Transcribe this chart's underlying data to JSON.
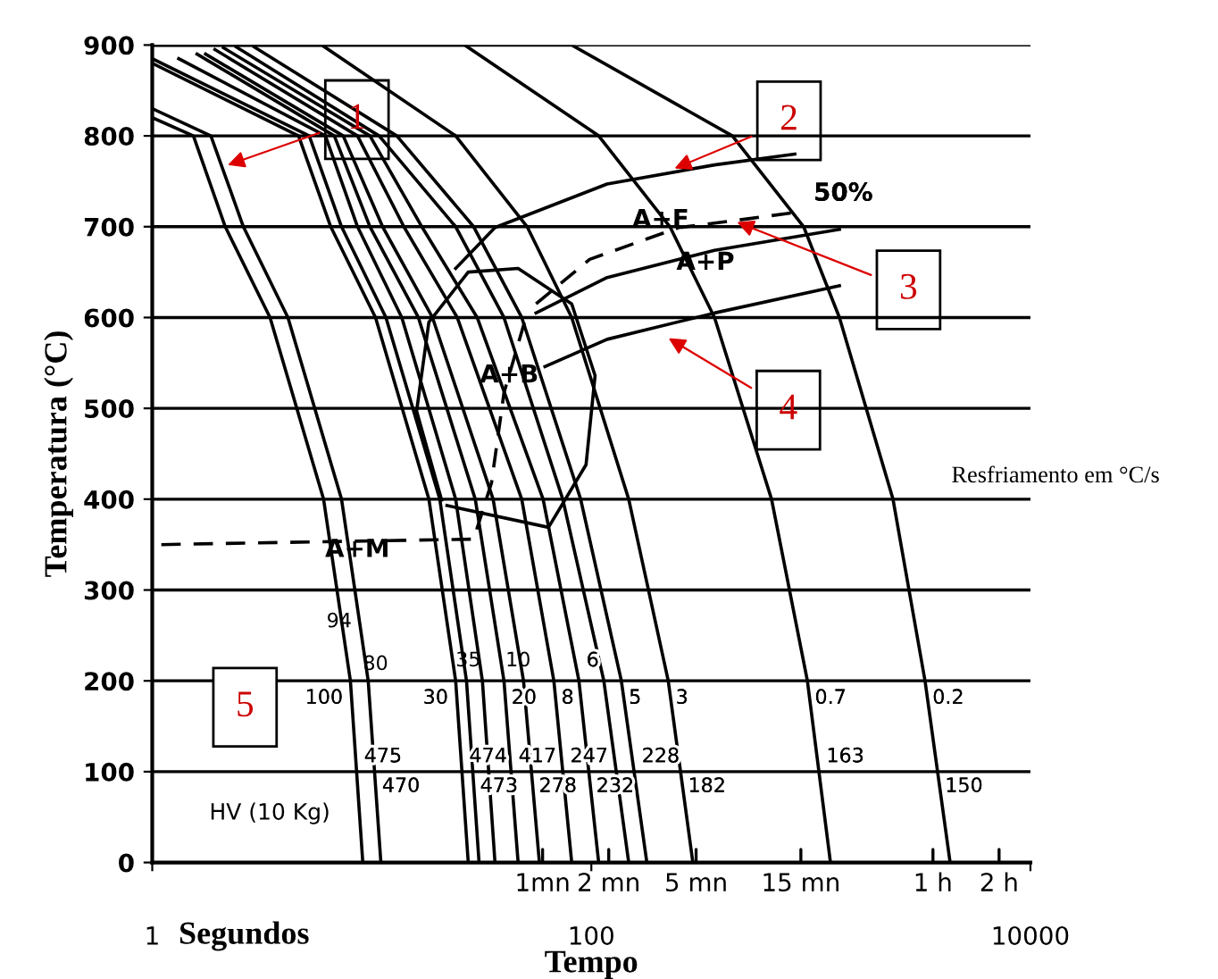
{
  "chart_data": {
    "type": "line",
    "xlabel": "Tempo",
    "ylabel": "Temperatura (°C)",
    "log": "x",
    "xlim": [
      1,
      10000
    ],
    "xticks": [
      1,
      100,
      10000
    ],
    "ylim": [
      0,
      900
    ],
    "yticks": [
      0,
      100,
      200,
      300,
      400,
      500,
      600,
      700,
      800,
      900
    ],
    "grid": "y",
    "marker": "none",
    "series": [
      {
        "color": "#000000",
        "x": [
          1,
          1.54,
          2.15,
          3.44,
          6.03,
          7.99,
          9.1
        ],
        "values": [
          820,
          800,
          700,
          600,
          400,
          200,
          0
        ]
      },
      {
        "color": "#000000",
        "x": [
          1,
          1.85,
          2.6,
          4.15,
          7.28,
          9.63,
          11
        ],
        "values": [
          830,
          800,
          700,
          600,
          400,
          200,
          0
        ]
      },
      {
        "color": "#000000",
        "x": [
          1,
          4.64,
          6.5,
          10.4,
          18.2,
          24.1,
          27.5
        ],
        "values": [
          880,
          800,
          700,
          600,
          400,
          200,
          0
        ]
      },
      {
        "color": "#000000",
        "x": [
          1,
          5.19,
          7.28,
          11.6,
          20.4,
          27,
          30.8
        ],
        "values": [
          885,
          800,
          700,
          600,
          400,
          200,
          0
        ]
      },
      {
        "color": "#000000",
        "x": [
          1.32,
          6.15,
          8.61,
          13.7,
          24.1,
          31.9,
          36.4
        ],
        "values": [
          885,
          800,
          700,
          600,
          400,
          200,
          0
        ]
      },
      {
        "color": "#000000",
        "x": [
          1.6,
          6.75,
          9.81,
          16.3,
          29.6,
          40,
          46.4
        ],
        "values": [
          890,
          800,
          700,
          600,
          400,
          200,
          0
        ]
      },
      {
        "color": "#000000",
        "x": [
          1.75,
          7.41,
          11.2,
          18.9,
          35.7,
          49.1,
          58
        ],
        "values": [
          890,
          800,
          700,
          600,
          400,
          200,
          0
        ]
      },
      {
        "color": "#000000",
        "x": [
          1.93,
          8.61,
          14,
          24.5,
          48.2,
          67.5,
          81.4
        ],
        "values": [
          895,
          800,
          700,
          600,
          400,
          200,
          0
        ]
      },
      {
        "color": "#000000",
        "x": [
          2.11,
          9.81,
          16.9,
          30.2,
          60.3,
          87.8,
          108
        ],
        "values": [
          897,
          800,
          700,
          600,
          400,
          200,
          0
        ]
      },
      {
        "color": "#000000",
        "x": [
          2.41,
          10.8,
          24.1,
          40,
          74.1,
          114,
          148
        ],
        "values": [
          898,
          800,
          700,
          600,
          400,
          200,
          0
        ]
      },
      {
        "color": "#000000",
        "x": [
          2.91,
          13,
          29.1,
          48.2,
          89.4,
          137,
          179
        ],
        "values": [
          898,
          800,
          700,
          600,
          400,
          200,
          0
        ]
      },
      {
        "color": "#000000",
        "x": [
          1,
          5.92,
          24.1,
          51,
          81.4,
          148,
          224,
          290
        ],
        "values": [
          900,
          900,
          800,
          700,
          600,
          400,
          200,
          0
        ]
      },
      {
        "color": "#000000",
        "x": [
          1,
          26.5,
          108,
          228,
          364,
          662,
          964,
          1228
        ],
        "values": [
          900,
          900,
          800,
          700,
          600,
          400,
          200,
          0
        ]
      },
      {
        "color": "#000000",
        "x": [
          1,
          81.4,
          439,
          927,
          1349,
          2366,
          3311,
          4307
        ],
        "values": [
          900,
          900,
          800,
          700,
          600,
          400,
          200,
          0
        ]
      },
      {
        "color": "#000000",
        "x": [
          24.1,
          36.4,
          118,
          364,
          845
        ],
        "values": [
          654,
          699,
          747,
          768,
          780
        ]
      },
      {
        "color": "#000000",
        "x": [
          20.8,
          16,
          18.2,
          27.5,
          46.4,
          81.4,
          104,
          94.6,
          63.8,
          22
        ],
        "values": [
          399,
          497,
          595,
          650,
          654,
          615,
          536,
          438,
          369,
          393
        ]
      },
      {
        "color": "#000000",
        "x": [
          56,
          118,
          364,
          1349
        ],
        "values": [
          605,
          644,
          674,
          697
        ]
      },
      {
        "color": "#000000",
        "x": [
          61.5,
          118,
          364,
          1349
        ],
        "values": [
          546,
          576,
          605,
          635
        ]
      },
      {
        "color": "#000000",
        "line_style": "dashed",
        "x": [
          56,
          98.2,
          250,
          529,
          927
        ],
        "values": [
          615,
          664,
          699,
          709,
          717
        ]
      },
      {
        "color": "#000000",
        "line_style": "dashed",
        "x": [
          1.1,
          29.1,
          35.1,
          40,
          51
        ],
        "values": [
          350,
          356,
          418,
          517,
          605
        ]
      }
    ],
    "annotations": [
      {
        "text": "1",
        "x": 2.1,
        "y": 766
      },
      {
        "text": "2",
        "x": 228,
        "y": 762
      },
      {
        "text": "3",
        "x": 439,
        "y": 707
      },
      {
        "text": "4",
        "x": 215,
        "y": 580
      },
      "5",
      "HV (10 Kg)",
      "Resfriamento em °C/s",
      "Segundos",
      {
        "text": "A+F",
        "x": 207,
        "y": 707
      },
      {
        "text": "A+P",
        "x": 331,
        "y": 660
      },
      {
        "text": "A+B",
        "x": 42.3,
        "y": 536
      },
      {
        "text": "A+M",
        "x": 8.6,
        "y": 344
      },
      {
        "text": "50%",
        "x": 927,
        "y": 717
      },
      {
        "text": "94",
        "x": 7.1,
        "y": 265
      },
      {
        "text": "80",
        "x": 10.4,
        "y": 218
      },
      {
        "text": "100",
        "x": 7.99,
        "y": 200
      },
      {
        "text": "35",
        "x": 27.5,
        "y": 222
      },
      {
        "text": "30",
        "x": 24.1,
        "y": 200
      },
      {
        "text": "10",
        "x": 46.4,
        "y": 222
      },
      {
        "text": "20",
        "x": 40,
        "y": 200
      },
      {
        "text": "6",
        "x": 87.8,
        "y": 200
      },
      {
        "text": "8",
        "x": 67.5,
        "y": 200
      },
      {
        "text": "5",
        "x": 137,
        "y": 200
      },
      {
        "text": "3",
        "x": 224,
        "y": 200
      },
      {
        "text": "0.7",
        "x": 964,
        "y": 200
      },
      {
        "text": "0.2",
        "x": 3311,
        "y": 200
      },
      {
        "text": "475",
        "x": 8.53,
        "y": 100
      },
      {
        "text": "470",
        "x": 10.3,
        "y": 100
      },
      {
        "text": "474",
        "x": 25.7,
        "y": 100
      },
      {
        "text": "473",
        "x": 28.8,
        "y": 100
      },
      {
        "text": "417",
        "x": 43.1,
        "y": 100
      },
      {
        "text": "278",
        "x": 53.4,
        "y": 100
      },
      {
        "text": "247",
        "x": 74.1,
        "y": 100
      },
      {
        "text": "232",
        "x": 97.4,
        "y": 100
      },
      {
        "text": "228",
        "x": 157,
        "y": 100
      },
      {
        "text": "182",
        "x": 255,
        "y": 100
      },
      {
        "text": "163",
        "x": 1088,
        "y": 100
      },
      {
        "text": "150",
        "x": 3776,
        "y": 100
      },
      "1mn",
      "2 mn",
      "5 mn",
      "15 mn",
      "1 h",
      "2 h"
    ]
  }
}
